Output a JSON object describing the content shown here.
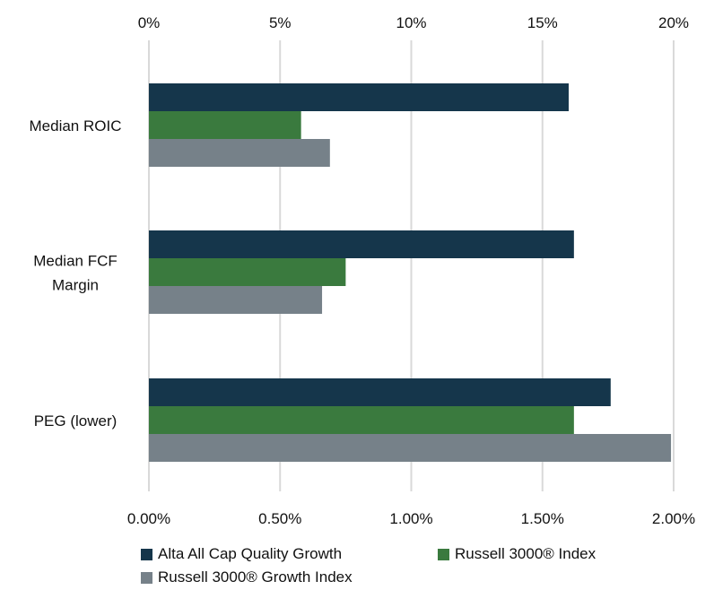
{
  "chart_data": {
    "type": "bar",
    "orientation": "horizontal",
    "categories": [
      "Median ROIC",
      "Median FCF Margin",
      "PEG (lower)"
    ],
    "category_lines": [
      [
        "Median ROIC"
      ],
      [
        "Median FCF",
        "Margin"
      ],
      [
        "PEG (lower)"
      ]
    ],
    "series": [
      {
        "name": "Alta All Cap Quality Growth",
        "color": "#15364b",
        "values": [
          0.16,
          0.162,
          0.0176
        ],
        "axis": [
          "top",
          "top",
          "bottom"
        ]
      },
      {
        "name": "Russell 3000® Index",
        "color": "#3a7a3e",
        "values": [
          0.058,
          0.075,
          0.0162
        ],
        "axis": [
          "top",
          "top",
          "bottom"
        ]
      },
      {
        "name": "Russell 3000® Growth Index",
        "color": "#768189",
        "values": [
          0.069,
          0.066,
          0.0199
        ],
        "axis": [
          "top",
          "top",
          "bottom"
        ]
      }
    ],
    "top_axis": {
      "min": 0,
      "max": 0.2,
      "ticks": [
        0,
        0.05,
        0.1,
        0.15,
        0.2
      ],
      "tick_labels": [
        "0%",
        "5%",
        "10%",
        "15%",
        "20%"
      ]
    },
    "bottom_axis": {
      "min": 0,
      "max": 0.02,
      "ticks": [
        0,
        0.005,
        0.01,
        0.015,
        0.02
      ],
      "tick_labels": [
        "0.00%",
        "0.50%",
        "1.00%",
        "1.50%",
        "2.00%"
      ]
    },
    "grid": true,
    "legend_position": "bottom-left"
  }
}
